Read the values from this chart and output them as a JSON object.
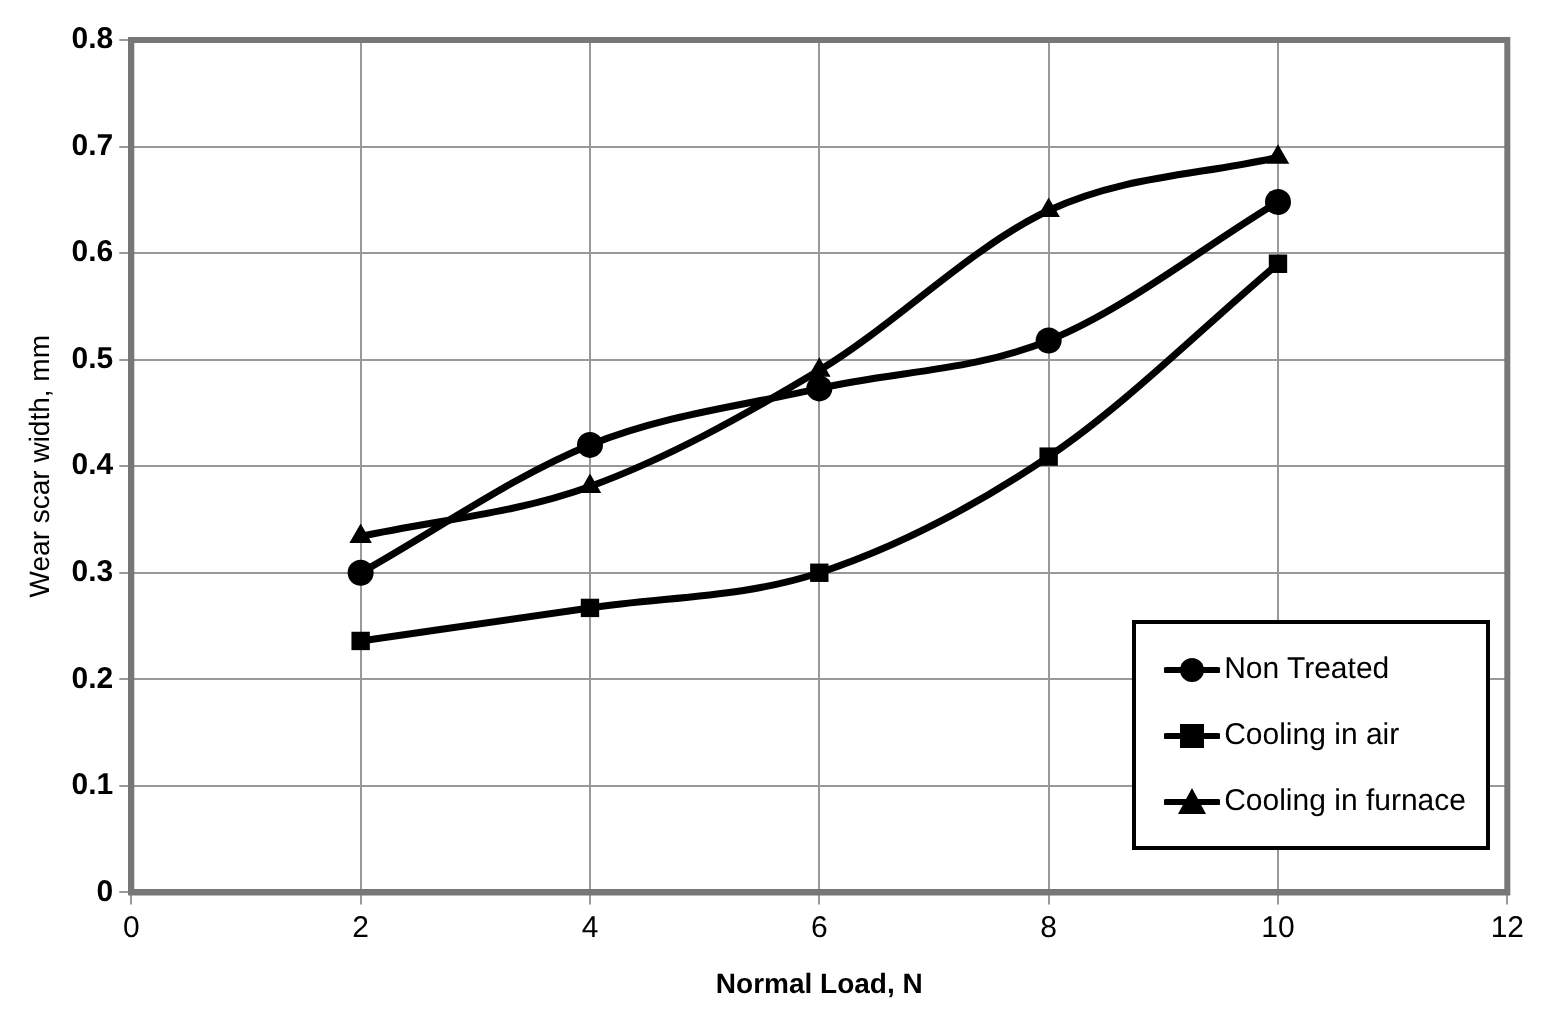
{
  "chart_data": {
    "type": "line",
    "xlabel": "Normal Load, N",
    "ylabel": "Wear scar width, mm",
    "xlim": [
      0,
      12
    ],
    "xticks": [
      0,
      2,
      4,
      6,
      8,
      10,
      12
    ],
    "ylim": [
      0,
      0.8
    ],
    "yticks": [
      0,
      0.1,
      0.2,
      0.3,
      0.4,
      0.5,
      0.6,
      0.7,
      0.8
    ],
    "grid": true,
    "legend": "bottom right",
    "line_style": "solid",
    "series": [
      {
        "name": "Non Treated",
        "color": "#000000",
        "marker": "circle",
        "x": [
          2,
          4,
          6,
          8,
          10
        ],
        "values": [
          0.3,
          0.42,
          0.473,
          0.518,
          0.648
        ]
      },
      {
        "name": "Cooling in air",
        "color": "#000000",
        "marker": "square",
        "x": [
          2,
          4,
          6,
          8,
          10
        ],
        "values": [
          0.236,
          0.267,
          0.3,
          0.409,
          0.59
        ]
      },
      {
        "name": "Cooling in furnace",
        "color": "#000000",
        "marker": "triangle",
        "x": [
          2,
          4,
          6,
          8,
          10
        ],
        "values": [
          0.334,
          0.381,
          0.49,
          0.64,
          0.69
        ]
      }
    ]
  }
}
